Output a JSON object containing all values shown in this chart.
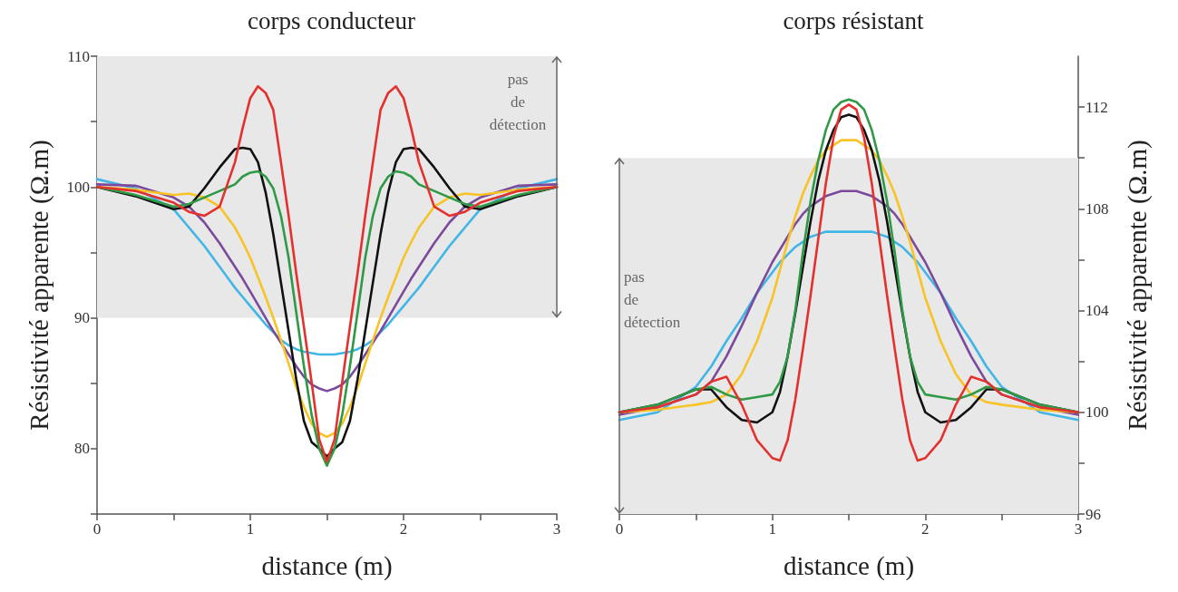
{
  "chart_data": [
    {
      "type": "line",
      "title": "corps conducteur",
      "xlabel": "distance (m)",
      "ylabel": "Résistivité apparente (Ω.m)",
      "marker": "none",
      "x": [
        0,
        0.25,
        0.5,
        0.6,
        0.7,
        0.8,
        0.9,
        0.95,
        1.0,
        1.05,
        1.1,
        1.15,
        1.2,
        1.25,
        1.3,
        1.35,
        1.4,
        1.45,
        1.5,
        1.55,
        1.6,
        1.65,
        1.7,
        1.75,
        1.8,
        1.85,
        1.9,
        1.95,
        2.0,
        2.05,
        2.1,
        2.2,
        2.3,
        2.4,
        2.5,
        2.75,
        3.0
      ],
      "xlim": [
        0,
        3
      ],
      "xticks": [
        0,
        {
          "value": 0.5,
          "label": null
        },
        1,
        {
          "value": 1.5,
          "label": null
        },
        2,
        {
          "value": 2.5,
          "label": null
        },
        3
      ],
      "ylim": [
        75,
        110
      ],
      "yticks": [
        {
          "value": 75,
          "label": null
        },
        80,
        {
          "value": 85,
          "label": null
        },
        90,
        {
          "value": 95,
          "label": null
        },
        100,
        {
          "value": 105,
          "label": null
        },
        110
      ],
      "bands": [
        {
          "axis": "y",
          "from": 90,
          "to": 110,
          "label": "pas de détection",
          "color": "#e8e8e8"
        }
      ],
      "series": [
        {
          "color": "#41b6e6",
          "values": [
            100.6,
            99.9,
            98.3,
            96.9,
            95.5,
            93.9,
            92.3,
            91.6,
            90.9,
            90.2,
            89.5,
            88.9,
            88.3,
            87.9,
            87.6,
            87.4,
            87.3,
            87.2,
            87.2,
            87.2,
            87.3,
            87.4,
            87.6,
            87.9,
            88.3,
            88.9,
            89.5,
            90.2,
            90.9,
            91.6,
            92.3,
            93.9,
            95.5,
            96.9,
            98.3,
            99.9,
            100.6
          ]
        },
        {
          "color": "#7b4a9c",
          "values": [
            100.2,
            100.1,
            99.2,
            98.5,
            97.3,
            95.7,
            93.9,
            93,
            92,
            91,
            90,
            89,
            88.1,
            87.2,
            86.3,
            85.5,
            84.9,
            84.6,
            84.4,
            84.6,
            84.9,
            85.5,
            86.3,
            87.2,
            88.1,
            89,
            90,
            91,
            92,
            93,
            93.9,
            95.7,
            97.3,
            98.5,
            99.2,
            100.1,
            100.2
          ]
        },
        {
          "color": "#f7c325",
          "values": [
            100,
            99.8,
            99.4,
            99.5,
            99.2,
            98.5,
            96.9,
            95.8,
            94.6,
            93.1,
            91.6,
            90,
            88.3,
            86.5,
            84.7,
            83.2,
            81.9,
            81.2,
            80.9,
            81.2,
            81.9,
            83.2,
            84.7,
            86.5,
            88.3,
            90,
            91.6,
            93.1,
            94.6,
            95.8,
            96.9,
            98.5,
            99.2,
            99.5,
            99.4,
            99.8,
            100
          ]
        },
        {
          "color": "#111111",
          "values": [
            100,
            99.3,
            98.3,
            98.5,
            99.9,
            101.5,
            102.9,
            103,
            102.9,
            101.9,
            99.6,
            96.4,
            92.7,
            89,
            85.3,
            82.1,
            80.5,
            80,
            79.4,
            80,
            80.5,
            82.1,
            85.3,
            89,
            92.7,
            96.4,
            99.6,
            101.9,
            102.9,
            103,
            102.9,
            101.5,
            99.9,
            98.5,
            98.3,
            99.3,
            100
          ]
        },
        {
          "color": "#2e9a46",
          "values": [
            100,
            99.4,
            98.5,
            98.7,
            99.2,
            99.7,
            100.2,
            100.8,
            101.1,
            101.2,
            100.8,
            99.9,
            97.8,
            94.6,
            90.4,
            86.3,
            82.6,
            80,
            78.7,
            80,
            82.6,
            86.3,
            90.4,
            94.6,
            97.8,
            99.9,
            100.8,
            101.2,
            101.1,
            100.8,
            100.2,
            99.7,
            99.2,
            98.7,
            98.5,
            99.4,
            100
          ]
        },
        {
          "color": "#e3312d",
          "values": [
            100,
            99.7,
            98.8,
            98.1,
            97.8,
            98.5,
            101.9,
            104.5,
            106.8,
            107.7,
            107.2,
            105.9,
            101.9,
            97.8,
            93.4,
            89.3,
            85.1,
            80.7,
            79,
            80.7,
            85.1,
            89.3,
            93.4,
            97.8,
            101.9,
            105.9,
            107.2,
            107.7,
            106.8,
            104.5,
            101.9,
            98.5,
            97.8,
            98.1,
            98.8,
            99.7,
            100
          ]
        }
      ]
    },
    {
      "type": "line",
      "title": "corps résistant",
      "xlabel": "distance (m)",
      "y2label": "Résistivité apparente (Ω.m)",
      "marker": "none",
      "x": [
        0,
        0.25,
        0.5,
        0.6,
        0.7,
        0.8,
        0.9,
        1.0,
        1.05,
        1.1,
        1.15,
        1.2,
        1.25,
        1.3,
        1.35,
        1.4,
        1.45,
        1.5,
        1.55,
        1.6,
        1.65,
        1.7,
        1.75,
        1.8,
        1.85,
        1.9,
        1.95,
        2.0,
        2.1,
        2.2,
        2.3,
        2.4,
        2.5,
        2.75,
        3.0
      ],
      "xlim": [
        0,
        3
      ],
      "xticks": [
        0,
        {
          "value": 0.5,
          "label": null
        },
        1,
        {
          "value": 1.5,
          "label": null
        },
        2,
        {
          "value": 2.5,
          "label": null
        },
        3
      ],
      "y2lim": [
        96,
        114
      ],
      "y2ticks": [
        96,
        {
          "value": 98,
          "label": null
        },
        100,
        {
          "value": 102,
          "label": null
        },
        104,
        {
          "value": 106,
          "label": null
        },
        108,
        {
          "value": 110,
          "label": null
        },
        112
      ],
      "bands": [
        {
          "axis": "y2",
          "from": 96,
          "to": 110,
          "label": "pas de détection",
          "color": "#e8e8e8"
        }
      ],
      "series": [
        {
          "axis": "y2",
          "color": "#41b6e6",
          "values": [
            99.7,
            100,
            101,
            101.8,
            102.8,
            103.7,
            104.7,
            105.5,
            105.9,
            106.2,
            106.5,
            106.7,
            106.9,
            107,
            107.1,
            107.1,
            107.1,
            107.1,
            107.1,
            107.1,
            107.1,
            107,
            106.9,
            106.7,
            106.5,
            106.2,
            105.9,
            105.5,
            104.7,
            103.7,
            102.8,
            101.8,
            101,
            100,
            99.7
          ]
        },
        {
          "axis": "y2",
          "color": "#7b4a9c",
          "values": [
            99.9,
            100.2,
            100.7,
            101.2,
            102.2,
            103.4,
            104.7,
            105.9,
            106.4,
            106.9,
            107.4,
            107.8,
            108.1,
            108.3,
            108.5,
            108.6,
            108.7,
            108.7,
            108.7,
            108.6,
            108.5,
            108.3,
            108.1,
            107.8,
            107.4,
            106.9,
            106.4,
            105.9,
            104.7,
            103.4,
            102.2,
            101.2,
            100.7,
            100.2,
            99.9
          ]
        },
        {
          "axis": "y2",
          "color": "#f7c325",
          "values": [
            100,
            100.1,
            100.3,
            100.4,
            100.7,
            101.5,
            102.8,
            104.5,
            105.6,
            106.7,
            107.7,
            108.6,
            109.3,
            109.9,
            110.3,
            110.5,
            110.7,
            110.7,
            110.7,
            110.5,
            110.3,
            109.9,
            109.3,
            108.6,
            107.7,
            106.7,
            105.6,
            104.5,
            102.8,
            101.5,
            100.7,
            100.4,
            100.3,
            100.1,
            100
          ]
        },
        {
          "axis": "y2",
          "color": "#111111",
          "values": [
            100,
            100.3,
            100.9,
            100.9,
            100.2,
            99.7,
            99.6,
            100,
            100.8,
            102.2,
            103.9,
            105.7,
            107.5,
            109.1,
            110.3,
            111.1,
            111.6,
            111.7,
            111.6,
            111.1,
            110.3,
            109.1,
            107.5,
            105.7,
            103.9,
            102.2,
            100.8,
            100,
            99.6,
            99.7,
            100.2,
            100.9,
            100.9,
            100.3,
            100
          ]
        },
        {
          "axis": "y2",
          "color": "#2e9a46",
          "values": [
            100,
            100.3,
            100.9,
            101,
            100.7,
            100.5,
            100.6,
            100.7,
            101.2,
            102.2,
            104,
            106.3,
            108.3,
            109.9,
            111.1,
            111.9,
            112.2,
            112.3,
            112.2,
            111.9,
            111.1,
            109.9,
            108.3,
            106.3,
            104,
            102.2,
            101.2,
            100.7,
            100.6,
            100.5,
            100.7,
            101,
            100.9,
            100.3,
            100
          ]
        },
        {
          "axis": "y2",
          "color": "#e3312d",
          "values": [
            100,
            100.2,
            100.7,
            101.2,
            101.4,
            100.3,
            98.9,
            98.2,
            98.1,
            98.9,
            100.5,
            102.5,
            104.6,
            106.8,
            109,
            110.8,
            111.9,
            112.1,
            111.9,
            110.8,
            109,
            106.8,
            104.6,
            102.5,
            100.5,
            98.9,
            98.1,
            98.2,
            98.9,
            100.3,
            101.4,
            101.2,
            100.7,
            100.2,
            100
          ]
        }
      ]
    }
  ]
}
